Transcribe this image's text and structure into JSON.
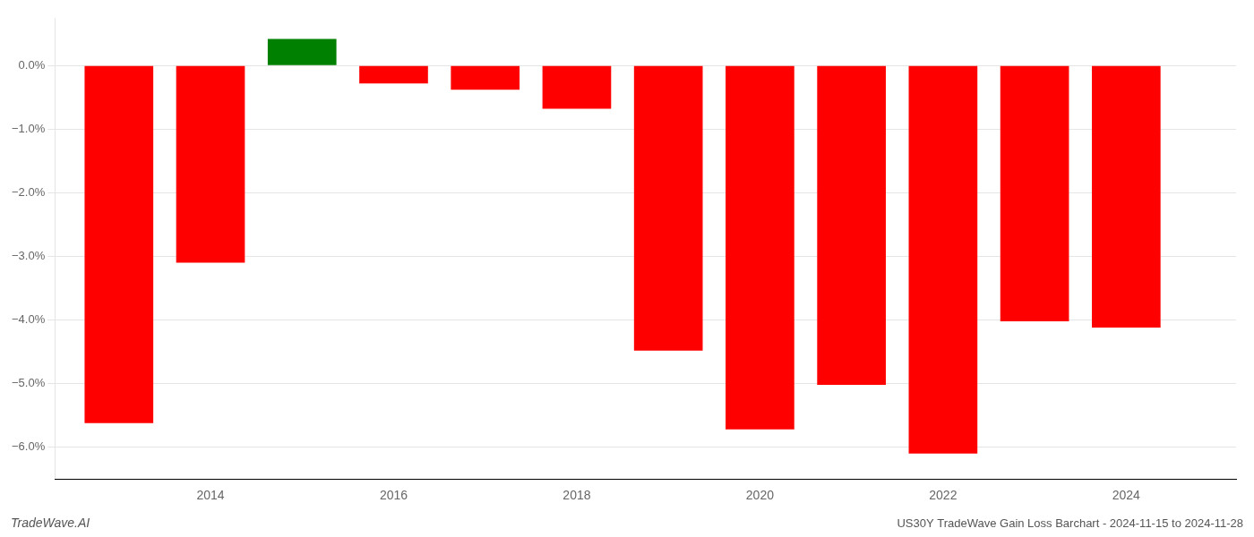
{
  "chart_data": {
    "type": "bar",
    "x": [
      2013,
      2014,
      2015,
      2016,
      2017,
      2018,
      2019,
      2020,
      2021,
      2022,
      2023,
      2024
    ],
    "values": [
      -5.62,
      -3.1,
      0.42,
      -0.28,
      -0.38,
      -0.68,
      -4.48,
      -5.72,
      -5.02,
      -6.1,
      -4.02,
      -4.12
    ],
    "colors": [
      "#ff0000",
      "#ff0000",
      "#008000",
      "#ff0000",
      "#ff0000",
      "#ff0000",
      "#ff0000",
      "#ff0000",
      "#ff0000",
      "#ff0000",
      "#ff0000",
      "#ff0000"
    ],
    "xlim": [
      2012.3,
      2025.2
    ],
    "xticks": [
      2014,
      2016,
      2018,
      2020,
      2022,
      2024
    ],
    "ylim": [
      -6.5,
      0.75
    ],
    "yticks": [
      {
        "value": 0.0,
        "label": "0.0%"
      },
      {
        "value": -1.0,
        "label": "−1.0%"
      },
      {
        "value": -2.0,
        "label": "−2.0%"
      },
      {
        "value": -3.0,
        "label": "−3.0%"
      },
      {
        "value": -4.0,
        "label": "−4.0%"
      },
      {
        "value": -5.0,
        "label": "−5.0%"
      },
      {
        "value": -6.0,
        "label": "−6.0%"
      }
    ],
    "grid": "y",
    "annotations": [
      "TradeWave.AI",
      "US30Y TradeWave Gain Loss Barchart - 2024-11-15 to 2024-11-28"
    ]
  }
}
